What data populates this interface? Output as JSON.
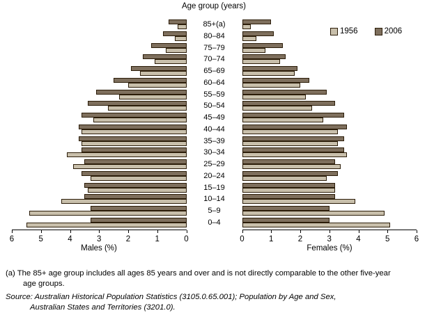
{
  "chart_data": {
    "type": "bar",
    "subtype": "population-pyramid",
    "title": "Age group (years)",
    "categories": [
      "85+(a)",
      "80–84",
      "75–79",
      "70–74",
      "65–69",
      "60–64",
      "55–59",
      "50–54",
      "45–49",
      "40–44",
      "35–39",
      "30–34",
      "25–29",
      "20–24",
      "15–19",
      "10–14",
      "5–9",
      "0–4"
    ],
    "series": [
      {
        "name": "Males 1956",
        "side": "left",
        "year": "1956",
        "values": [
          0.3,
          0.4,
          0.7,
          1.1,
          1.6,
          2.0,
          2.3,
          2.7,
          3.2,
          3.6,
          3.6,
          4.1,
          3.9,
          3.3,
          3.4,
          4.3,
          5.4,
          5.5
        ]
      },
      {
        "name": "Males 2006",
        "side": "left",
        "year": "2006",
        "values": [
          0.6,
          0.8,
          1.2,
          1.5,
          1.9,
          2.5,
          3.1,
          3.4,
          3.6,
          3.7,
          3.7,
          3.6,
          3.5,
          3.6,
          3.5,
          3.5,
          3.3,
          3.3
        ]
      },
      {
        "name": "Females 1956",
        "side": "right",
        "year": "1956",
        "values": [
          0.3,
          0.5,
          0.8,
          1.3,
          1.8,
          2.0,
          2.2,
          2.4,
          2.8,
          3.3,
          3.3,
          3.6,
          3.4,
          2.9,
          3.2,
          3.9,
          4.9,
          5.1
        ]
      },
      {
        "name": "Females 2006",
        "side": "right",
        "year": "2006",
        "values": [
          1.0,
          1.1,
          1.4,
          1.5,
          1.9,
          2.3,
          2.9,
          3.2,
          3.5,
          3.6,
          3.5,
          3.5,
          3.2,
          3.3,
          3.2,
          3.2,
          3.0,
          3.0
        ]
      }
    ],
    "xlim": [
      0,
      6
    ],
    "xlabel_left": "Males (%)",
    "xlabel_right": "Females (%)",
    "axis": {
      "male_tick_labels": [
        "6",
        "5",
        "4",
        "3",
        "2",
        "1",
        "0"
      ],
      "female_tick_labels": [
        "0",
        "1",
        "2",
        "3",
        "4",
        "5",
        "6"
      ]
    },
    "legend": {
      "position": "top-right",
      "entries": [
        {
          "label": "1956",
          "color": "#c8bfab"
        },
        {
          "label": "2006",
          "color": "#7e6f5d"
        }
      ]
    },
    "colors": {
      "bar_1956": "#c8bfab",
      "bar_2006": "#7e6f5d",
      "bar_border": "#2b1c08",
      "axis": "#000000"
    },
    "grid": false
  },
  "footnote": {
    "line1": "(a) The 85+ age group includes all ages 85 years and over and is not directly comparable to the other five-year",
    "line2": "age groups."
  },
  "source": {
    "line1": "Source: Australian Historical Population Statistics (3105.0.65.001); Population by Age and Sex,",
    "line2": "Australian States and Territories (3201.0)."
  }
}
